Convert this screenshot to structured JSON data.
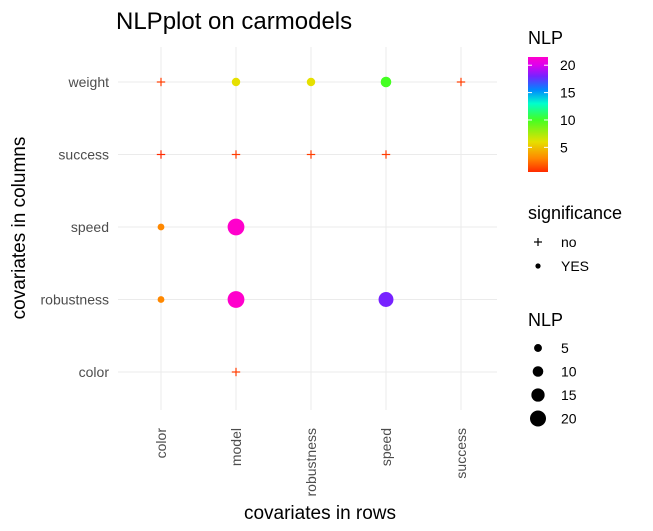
{
  "chart_data": {
    "type": "scatter",
    "title": "NLPplot on carmodels",
    "xlabel": "covariates in rows",
    "ylabel": "covariates in columns",
    "x_categories": [
      "color",
      "model",
      "robustness",
      "speed",
      "success"
    ],
    "y_categories": [
      "color",
      "robustness",
      "speed",
      "success",
      "weight"
    ],
    "points": [
      {
        "x": "color",
        "y": "weight",
        "nlp": 1.0,
        "significant": "no"
      },
      {
        "x": "model",
        "y": "weight",
        "nlp": 6.0,
        "significant": "YES"
      },
      {
        "x": "robustness",
        "y": "weight",
        "nlp": 6.0,
        "significant": "YES"
      },
      {
        "x": "speed",
        "y": "weight",
        "nlp": 10.0,
        "significant": "YES"
      },
      {
        "x": "success",
        "y": "weight",
        "nlp": 1.0,
        "significant": "no"
      },
      {
        "x": "color",
        "y": "success",
        "nlp": 0.5,
        "significant": "no"
      },
      {
        "x": "model",
        "y": "success",
        "nlp": 1.0,
        "significant": "no"
      },
      {
        "x": "robustness",
        "y": "success",
        "nlp": 1.0,
        "significant": "no"
      },
      {
        "x": "speed",
        "y": "success",
        "nlp": 1.0,
        "significant": "no"
      },
      {
        "x": "color",
        "y": "speed",
        "nlp": 3.0,
        "significant": "YES"
      },
      {
        "x": "model",
        "y": "speed",
        "nlp": 21.5,
        "significant": "YES"
      },
      {
        "x": "color",
        "y": "robustness",
        "nlp": 3.0,
        "significant": "YES"
      },
      {
        "x": "model",
        "y": "robustness",
        "nlp": 21.5,
        "significant": "YES"
      },
      {
        "x": "speed",
        "y": "robustness",
        "nlp": 18.0,
        "significant": "YES"
      },
      {
        "x": "model",
        "y": "color",
        "nlp": 1.0,
        "significant": "no"
      }
    ],
    "color_scale": {
      "title": "NLP",
      "breaks": [
        5,
        10,
        15,
        20
      ],
      "limits": [
        0.5,
        21.5
      ],
      "stops": [
        {
          "value": 0.5,
          "color": "#ff2a00"
        },
        {
          "value": 3,
          "color": "#ff8800"
        },
        {
          "value": 6,
          "color": "#e6e000"
        },
        {
          "value": 10,
          "color": "#44ff22"
        },
        {
          "value": 13,
          "color": "#00ffcc"
        },
        {
          "value": 15.5,
          "color": "#0088ff"
        },
        {
          "value": 18,
          "color": "#7722ff"
        },
        {
          "value": 20,
          "color": "#dd00ee"
        },
        {
          "value": 21.5,
          "color": "#ff00cc"
        }
      ]
    },
    "shape_legend": {
      "title": "significance",
      "items": [
        {
          "label": "no",
          "symbol": "+"
        },
        {
          "label": "YES",
          "symbol": "●"
        }
      ]
    },
    "size_legend": {
      "title": "NLP",
      "breaks": [
        5,
        10,
        15,
        20
      ]
    },
    "grid": true,
    "legend_position": "right"
  }
}
